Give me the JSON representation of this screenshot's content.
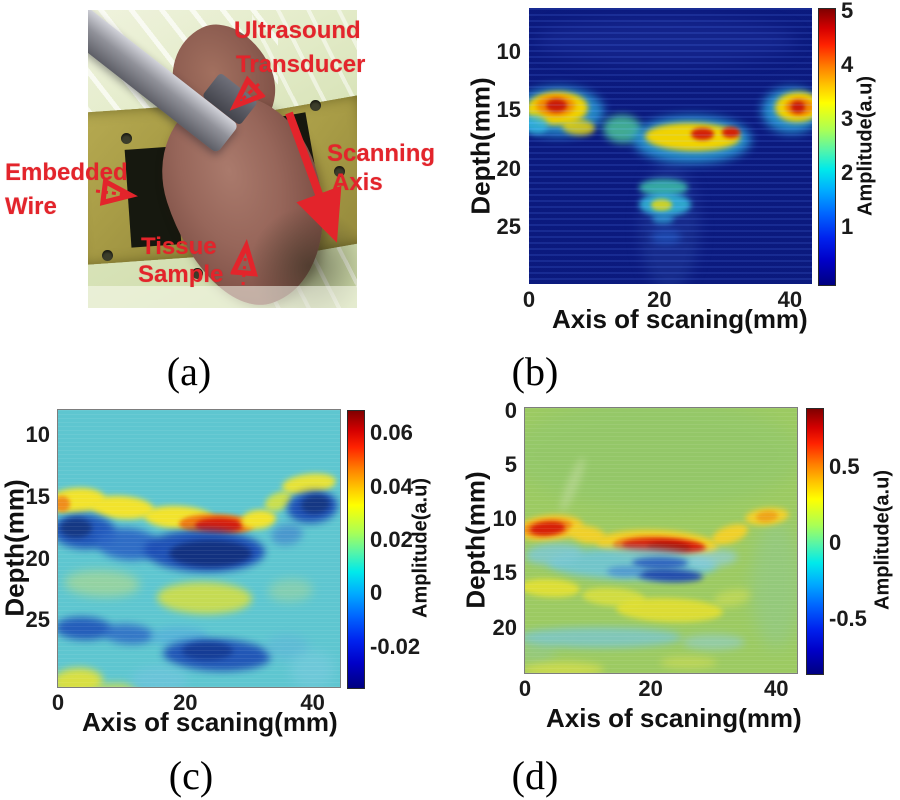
{
  "figure": {
    "captions": {
      "a": "(a)",
      "b": "(b)",
      "c": "(c)",
      "d": "(d)"
    }
  },
  "panel_a": {
    "annotation_color": "#e3242b",
    "labels": {
      "ultrasound1": "Ultrasound",
      "ultrasound2": "Transducer",
      "scanning1": "Scanning",
      "scanning2": "Axis",
      "embedded1": "Embedded",
      "embedded2": "Wire",
      "tissue1": "Tissue",
      "tissue2": "Sample"
    }
  },
  "chart_data": [
    {
      "panel": "b",
      "type": "heatmap",
      "xlabel": "Axis of scaning(mm)",
      "ylabel": "Depth(mm)",
      "xticks": [
        0,
        20,
        40
      ],
      "yticks": [
        10,
        15,
        20,
        25
      ],
      "xlim": [
        0,
        43.4
      ],
      "ylim": [
        6.2,
        29.9
      ],
      "background": "#0c1b84",
      "colorbar": {
        "label": "Amplitude(a.u)",
        "ticks": [
          "5",
          "4",
          "3",
          "2",
          "1"
        ],
        "lim": [
          5.05,
          -0.1
        ]
      },
      "features": [
        [
          21,
          9,
          40,
          4,
          "#1c2f9e",
          8,
          0.55,
          0
        ],
        [
          21.5,
          25,
          9,
          11,
          "#23409f",
          7,
          0.5,
          0
        ],
        [
          4.5,
          15.1,
          14,
          4.2,
          "#2fb3e8",
          5,
          0.75,
          0
        ],
        [
          4.3,
          14.8,
          9.5,
          2.8,
          "#ffe000",
          3,
          1,
          -2
        ],
        [
          4.0,
          14.6,
          6,
          1.8,
          "#ff9000",
          3,
          1,
          0
        ],
        [
          4.2,
          14.6,
          3.2,
          1.1,
          "#d61c06",
          2,
          1,
          0
        ],
        [
          0.9,
          16.2,
          4,
          1.6,
          "#35c0e8",
          3,
          0.8,
          10
        ],
        [
          7.5,
          16.4,
          5,
          1.4,
          "#ffe000",
          3,
          0.8,
          5
        ],
        [
          14.3,
          16.6,
          6,
          2.4,
          "#4fcf9f",
          4,
          0.85,
          3
        ],
        [
          25,
          17.5,
          18,
          4,
          "#2fb3e8",
          5,
          0.8,
          0
        ],
        [
          25,
          17.3,
          14.5,
          2.4,
          "#ffe000",
          3,
          1,
          1
        ],
        [
          26.6,
          17.0,
          3.6,
          1.0,
          "#e02206",
          2,
          1,
          0
        ],
        [
          31.0,
          16.9,
          2.8,
          0.9,
          "#e02206",
          2,
          1,
          0
        ],
        [
          40.3,
          15.0,
          9,
          3.8,
          "#2fb3e8",
          5,
          0.8,
          0
        ],
        [
          41.2,
          14.7,
          7,
          2.6,
          "#ffe000",
          3,
          1,
          -3
        ],
        [
          41.5,
          14.7,
          4.5,
          1.6,
          "#ff9000",
          2,
          1,
          0
        ],
        [
          41.3,
          14.7,
          2.2,
          1.0,
          "#d61c06",
          2,
          1,
          0
        ],
        [
          20.6,
          21.6,
          7.5,
          1.5,
          "#3fc9b0",
          3,
          0.85,
          0
        ],
        [
          20.8,
          23.1,
          8,
          2.0,
          "#35bfe0",
          3,
          0.9,
          0
        ],
        [
          20.3,
          23.1,
          3.2,
          1.0,
          "#d6de2e",
          2,
          1,
          0
        ],
        [
          20.6,
          24.3,
          3.4,
          0.9,
          "#2f9fd8",
          3,
          0.8,
          0
        ],
        [
          21,
          25.9,
          4.5,
          1.2,
          "#2255c0",
          4,
          0.8,
          0
        ]
      ]
    },
    {
      "panel": "c",
      "type": "heatmap",
      "xlabel": "Axis of scaning(mm)",
      "ylabel": "Depth(mm)",
      "xticks": [
        0,
        20,
        40
      ],
      "yticks": [
        10,
        15,
        20,
        25
      ],
      "xlim": [
        0,
        44.3
      ],
      "ylim": [
        7.95,
        30.4
      ],
      "background": "#5ec6d0",
      "colorbar": {
        "label": "Amplitude(a.u)",
        "ticks": [
          "0.06",
          "0.04",
          "0.02",
          "0",
          "-0.02"
        ],
        "lim": [
          0.0687,
          -0.0358
        ]
      },
      "features": [
        [
          3,
          15.3,
          9,
          2.0,
          "#f2e32c",
          3,
          1,
          -4
        ],
        [
          0.6,
          15.6,
          2.6,
          1.3,
          "#ef8d1c",
          2,
          1,
          0
        ],
        [
          10,
          15.9,
          10,
          1.9,
          "#f2e32c",
          3,
          1,
          4
        ],
        [
          19,
          16.7,
          11,
          1.9,
          "#f2e32c",
          3,
          1,
          3
        ],
        [
          25,
          17.2,
          12,
          1.7,
          "#ef7a10",
          2,
          1,
          1
        ],
        [
          25.3,
          17.3,
          7.5,
          1.2,
          "#d31e0e",
          2,
          1,
          0
        ],
        [
          31.5,
          16.8,
          5.5,
          1.5,
          "#f2e32c",
          3,
          1,
          -6
        ],
        [
          34.6,
          15.4,
          4.5,
          1.4,
          "#cfe048",
          3,
          0.95,
          -25
        ],
        [
          39.5,
          13.9,
          8.5,
          1.6,
          "#e6e238",
          3,
          1,
          -7
        ],
        [
          4,
          17.8,
          10,
          2.8,
          "#1e52b8",
          4,
          0.95,
          3
        ],
        [
          2.8,
          17.5,
          5,
          1.6,
          "#14357e",
          3,
          0.9,
          0
        ],
        [
          11,
          18.8,
          10,
          2.6,
          "#2a64c4",
          4,
          0.9,
          5
        ],
        [
          23,
          19.4,
          19,
          3.4,
          "#1c4cb4",
          4,
          0.95,
          1
        ],
        [
          24,
          19.6,
          13,
          2.2,
          "#12307e",
          3,
          0.95,
          0
        ],
        [
          40,
          15.8,
          8,
          2.6,
          "#1c4cb4",
          4,
          0.95,
          -6
        ],
        [
          40.5,
          15.6,
          4.5,
          1.5,
          "#14357e",
          3,
          0.9,
          -6
        ],
        [
          36,
          18,
          5,
          1.7,
          "#4284cc",
          4,
          0.7,
          -10
        ],
        [
          7,
          22,
          12,
          2.2,
          "#a6d793",
          5,
          0.75,
          2
        ],
        [
          23,
          23.2,
          15,
          2.6,
          "#d8df3e",
          4,
          0.85,
          1
        ],
        [
          36.5,
          22.6,
          7,
          1.9,
          "#9cd49e",
          5,
          0.6,
          -3
        ],
        [
          4,
          25.7,
          9,
          1.9,
          "#1e52b8",
          4,
          0.9,
          2
        ],
        [
          11,
          26.1,
          8,
          1.6,
          "#2a64c4",
          4,
          0.8,
          4
        ],
        [
          19,
          26.3,
          9,
          1.6,
          "#52a8dc",
          4,
          0.6,
          0
        ],
        [
          25,
          27.8,
          17,
          2.6,
          "#1c4cb4",
          4,
          0.9,
          2
        ],
        [
          23.5,
          27.5,
          8,
          1.5,
          "#143a92",
          3,
          0.9,
          0
        ],
        [
          36,
          27.2,
          7,
          2,
          "#5fb4d8",
          5,
          0.6,
          0
        ],
        [
          3,
          30,
          8,
          2.2,
          "#dfe13c",
          4,
          0.95,
          -3
        ],
        [
          9,
          30.8,
          7,
          1.5,
          "#dfe13c",
          4,
          0.7,
          0
        ],
        [
          16,
          29.8,
          9,
          2.2,
          "#6fc4dc",
          5,
          0.7,
          0
        ],
        [
          40,
          29,
          7,
          3,
          "#7ecbe0",
          6,
          0.5,
          0
        ]
      ]
    },
    {
      "panel": "d",
      "type": "heatmap",
      "xlabel": "Axis of scaning(mm)",
      "ylabel": "Depth(mm)",
      "xticks": [
        0,
        20,
        40
      ],
      "yticks": [
        0,
        5,
        10,
        15,
        20
      ],
      "xlim": [
        0,
        43.3
      ],
      "ylim": [
        -0.3,
        24.2
      ],
      "background": "#9cca62",
      "colorbar": {
        "label": "Amplitude(a.u)",
        "ticks": [
          "0.5",
          "0",
          "-0.5"
        ],
        "lim": [
          0.89,
          -0.87
        ]
      },
      "features": [
        [
          21,
          4,
          46,
          10,
          "#8fc66e",
          8,
          0.55,
          0
        ],
        [
          40,
          16,
          8,
          12,
          "#8cc89a",
          8,
          0.45,
          0
        ],
        [
          2,
          22,
          6,
          3,
          "#8cc8a2",
          6,
          0.4,
          0
        ],
        [
          7.6,
          6.8,
          1.8,
          5.5,
          "#b9d794",
          4,
          0.7,
          22
        ],
        [
          4,
          10.8,
          10.5,
          2.4,
          "#f2ca28",
          3,
          1,
          -5
        ],
        [
          3.6,
          10.8,
          8,
          1.7,
          "#ee8814",
          2,
          1,
          -5
        ],
        [
          3.5,
          10.8,
          5.5,
          1.2,
          "#d62008",
          2,
          1,
          -5
        ],
        [
          9.8,
          11.4,
          6,
          1.6,
          "#f0d02a",
          3,
          1,
          10
        ],
        [
          21,
          12.4,
          19.5,
          2.8,
          "#f2cf24",
          3,
          1,
          2
        ],
        [
          21.5,
          12.5,
          15,
          1.9,
          "#ee7d12",
          2,
          1,
          2
        ],
        [
          22,
          12.5,
          13,
          1.4,
          "#d81e08",
          2,
          1,
          2
        ],
        [
          23,
          12.6,
          7,
          1.0,
          "#b01205",
          2,
          1,
          2
        ],
        [
          32.6,
          11.4,
          6,
          1.6,
          "#f0d02a",
          3,
          1,
          -20
        ],
        [
          38.6,
          9.7,
          7,
          1.6,
          "#f0d02a",
          3,
          1,
          -6
        ],
        [
          38.6,
          9.7,
          3.5,
          1.0,
          "#eea018",
          2,
          0.9,
          -6
        ],
        [
          17,
          14.1,
          27,
          3,
          "#6ec5d6",
          4,
          0.9,
          1
        ],
        [
          4.5,
          13.2,
          9,
          2,
          "#7cc8d4",
          4,
          0.85,
          -4
        ],
        [
          30,
          13.6,
          8,
          1.6,
          "#8fcddc",
          4,
          0.7,
          -5
        ],
        [
          21.5,
          14.0,
          9,
          1.1,
          "#2e62be",
          3,
          0.95,
          0
        ],
        [
          23,
          15.2,
          10.5,
          1.2,
          "#1e46ac",
          3,
          0.95,
          2
        ],
        [
          16,
          14.8,
          6,
          1.0,
          "#4a90d0",
          3,
          0.8,
          0
        ],
        [
          4,
          16.4,
          9.5,
          1.7,
          "#e5e132",
          3,
          0.9,
          3
        ],
        [
          14,
          17.2,
          10,
          1.7,
          "#dfe13a",
          3,
          0.8,
          4
        ],
        [
          23,
          18.4,
          17,
          2.2,
          "#e3df30",
          3,
          0.9,
          2
        ],
        [
          33,
          17.3,
          6,
          1.5,
          "#cfdd52",
          4,
          0.6,
          -12
        ],
        [
          12,
          20.9,
          26,
          1.9,
          "#7ac6cf",
          4,
          0.8,
          0
        ],
        [
          30,
          21.3,
          10,
          1.5,
          "#8fcdd2",
          4,
          0.6,
          0
        ],
        [
          6,
          23.9,
          13,
          1.4,
          "#d8de48",
          4,
          0.75,
          0
        ],
        [
          26,
          23.2,
          9,
          1.2,
          "#d4dd50",
          4,
          0.55,
          0
        ]
      ]
    }
  ]
}
